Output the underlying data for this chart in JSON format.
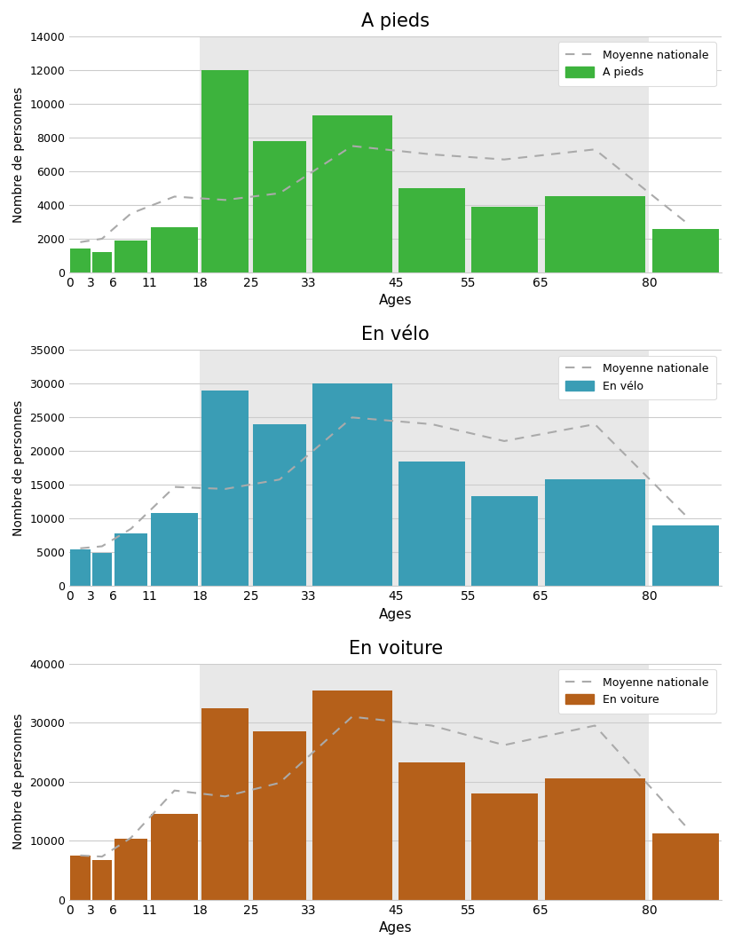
{
  "charts": [
    {
      "title": "A pieds",
      "bar_color": "#3db33d",
      "legend_label": "A pieds",
      "bar_values": [
        1400,
        1200,
        1900,
        2700,
        12000,
        7800,
        9300,
        5000,
        3900,
        4500,
        2600
      ],
      "mean_values": [
        1800,
        2000,
        3500,
        4500,
        4300,
        4700,
        7500,
        7000,
        6700,
        7300,
        3000
      ],
      "ylim": [
        0,
        14000
      ],
      "yticks": [
        0,
        2000,
        4000,
        6000,
        8000,
        10000,
        12000,
        14000
      ]
    },
    {
      "title": "En vélo",
      "bar_color": "#3a9db5",
      "legend_label": "En vélo",
      "bar_values": [
        5400,
        4900,
        7800,
        10800,
        29000,
        24000,
        30000,
        18500,
        13400,
        15800,
        9000
      ],
      "mean_values": [
        5600,
        5900,
        8500,
        14700,
        14400,
        15800,
        25000,
        24000,
        21500,
        24000,
        10500
      ],
      "ylim": [
        0,
        35000
      ],
      "yticks": [
        0,
        5000,
        10000,
        15000,
        20000,
        25000,
        30000,
        35000
      ]
    },
    {
      "title": "En voiture",
      "bar_color": "#b5601a",
      "legend_label": "En voiture",
      "bar_values": [
        7500,
        6700,
        10300,
        14500,
        32500,
        28500,
        35500,
        23200,
        18000,
        20500,
        11200
      ],
      "mean_values": [
        7500,
        7300,
        10500,
        18500,
        17500,
        19800,
        31000,
        29500,
        26200,
        29500,
        12500
      ],
      "ylim": [
        0,
        40000
      ],
      "yticks": [
        0,
        10000,
        20000,
        30000,
        40000
      ]
    }
  ],
  "age_edges": [
    0,
    3,
    6,
    11,
    18,
    25,
    33,
    45,
    55,
    65,
    80,
    90
  ],
  "age_labels": [
    "0",
    "3",
    "6",
    "11",
    "18",
    "25",
    "33",
    "45",
    "55",
    "65",
    "80"
  ],
  "xtick_positions": [
    0,
    3,
    6,
    11,
    18,
    25,
    33,
    45,
    55,
    65,
    80
  ],
  "shade_start": 18,
  "shade_end": 80,
  "ylabel": "Nombre de personnes",
  "xlabel": "Ages",
  "bg_color": "#e8e8e8",
  "fig_bg": "#ffffff",
  "dashed_color": "#aaaaaa"
}
